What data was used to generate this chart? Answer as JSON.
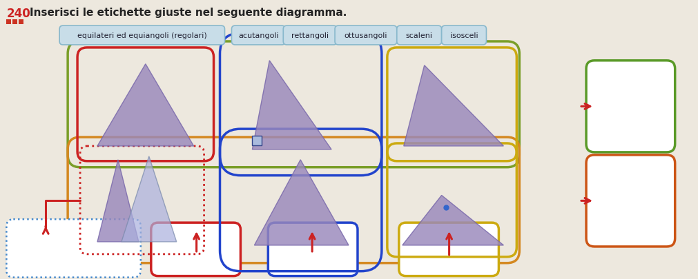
{
  "title_num": "240",
  "title_text": "Inserisci le etichette giuste nel seguente diagramma.",
  "tags": [
    {
      "text": "equilateri ed equiangoli (regolari)",
      "bg": "#c8dde8",
      "border": "#88b8cc"
    },
    {
      "text": "acutangoli",
      "bg": "#c8dde8",
      "border": "#88b8cc"
    },
    {
      "text": "rettangoli",
      "bg": "#c8dde8",
      "border": "#88b8cc"
    },
    {
      "text": "ottusangoli",
      "bg": "#c8dde8",
      "border": "#88b8cc"
    },
    {
      "text": "scaleni",
      "bg": "#c8dde8",
      "border": "#88b8cc"
    },
    {
      "text": "isosceli",
      "bg": "#c8dde8",
      "border": "#88b8cc"
    }
  ],
  "bg_color": "#ede8de",
  "tri_fill": "#9988bb",
  "tri_edge": "#7766aa",
  "tri_alpha": 0.82
}
